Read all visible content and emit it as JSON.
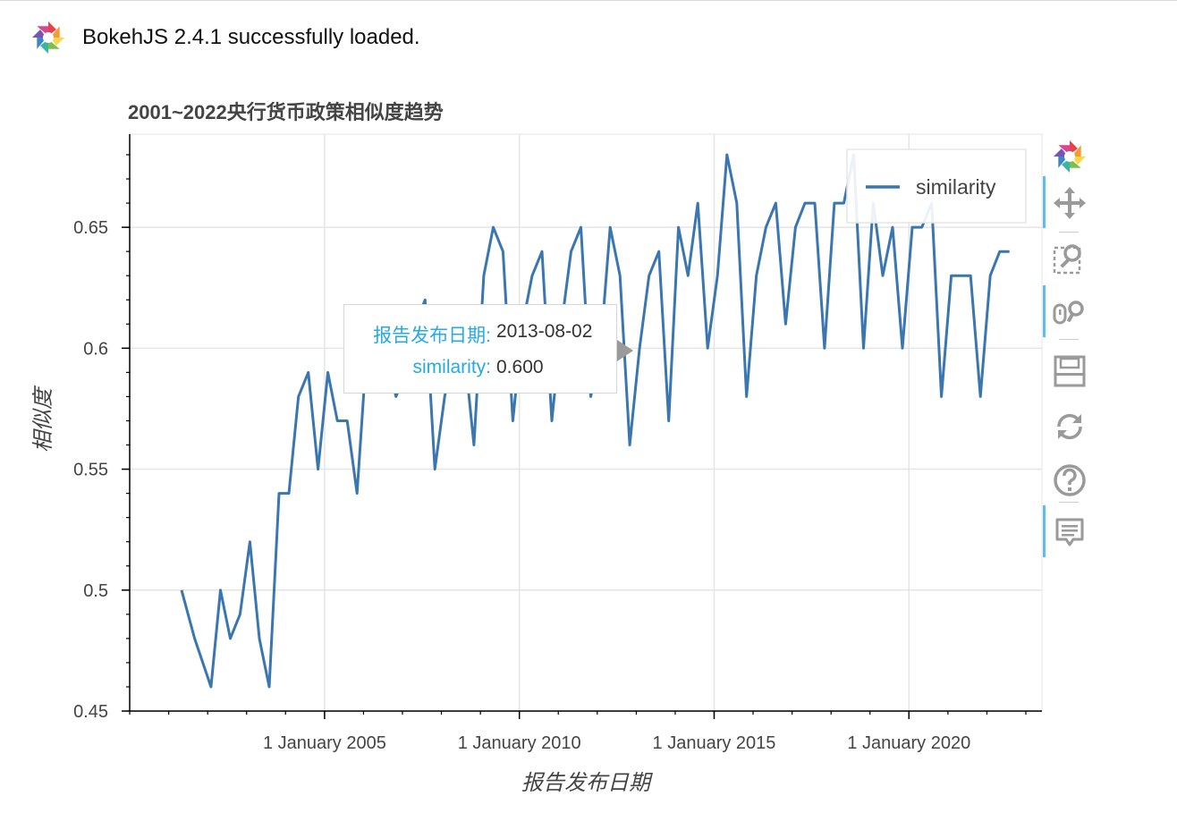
{
  "banner": {
    "logo_icon": "bokeh-logo-icon",
    "text": "BokehJS 2.4.1 successfully loaded."
  },
  "chart_data": {
    "type": "line",
    "title": "2001~2022央行货币政策相似度趋势",
    "xlabel": "报告发布日期",
    "ylabel": "相似度",
    "x_is_date": true,
    "xlim": [
      "2000-01-01",
      "2023-06-01"
    ],
    "ylim": [
      0.45,
      0.6885
    ],
    "x_ticks": [
      "2005-01-01",
      "2010-01-01",
      "2015-01-01",
      "2020-01-01"
    ],
    "x_tick_labels": [
      "1 January 2005",
      "1 January 2010",
      "1 January 2015",
      "1 January 2020"
    ],
    "y_ticks": [
      0.45,
      0.5,
      0.55,
      0.6,
      0.65
    ],
    "y_tick_labels": [
      "0.45",
      "0.5",
      "0.55",
      "0.6",
      "0.65"
    ],
    "grid": true,
    "legend_position": "top-right",
    "series": [
      {
        "name": "similarity",
        "color": "#3a76af",
        "x": [
          "2001-05-01",
          "2001-09-01",
          "2002-02-01",
          "2002-05-01",
          "2002-08-01",
          "2002-11-01",
          "2003-02-01",
          "2003-05-01",
          "2003-08-01",
          "2003-11-01",
          "2004-02-01",
          "2004-05-01",
          "2004-08-01",
          "2004-11-01",
          "2005-02-01",
          "2005-05-01",
          "2005-08-01",
          "2005-11-01",
          "2006-02-01",
          "2006-05-01",
          "2006-08-01",
          "2006-11-01",
          "2007-02-01",
          "2007-05-01",
          "2007-08-01",
          "2007-11-01",
          "2008-02-01",
          "2008-05-01",
          "2008-08-01",
          "2008-11-01",
          "2009-02-01",
          "2009-05-01",
          "2009-08-01",
          "2009-11-01",
          "2010-02-01",
          "2010-05-01",
          "2010-08-01",
          "2010-11-01",
          "2011-02-01",
          "2011-05-01",
          "2011-08-01",
          "2011-11-01",
          "2012-02-01",
          "2012-05-01",
          "2012-08-01",
          "2012-11-01",
          "2013-02-01",
          "2013-05-01",
          "2013-08-01",
          "2013-11-01",
          "2014-02-01",
          "2014-05-01",
          "2014-08-01",
          "2014-11-01",
          "2015-02-01",
          "2015-05-01",
          "2015-08-01",
          "2015-11-01",
          "2016-02-01",
          "2016-05-01",
          "2016-08-01",
          "2016-11-01",
          "2017-02-01",
          "2017-05-01",
          "2017-08-01",
          "2017-11-01",
          "2018-02-01",
          "2018-05-01",
          "2018-08-01",
          "2018-11-01",
          "2019-02-01",
          "2019-05-01",
          "2019-08-01",
          "2019-11-01",
          "2020-02-01",
          "2020-05-01",
          "2020-08-01",
          "2020-11-01",
          "2021-02-01",
          "2021-05-01",
          "2021-08-01",
          "2021-11-01",
          "2022-02-01",
          "2022-05-01",
          "2022-08-01"
        ],
        "y": [
          0.5,
          0.48,
          0.46,
          0.5,
          0.48,
          0.49,
          0.52,
          0.48,
          0.46,
          0.54,
          0.54,
          0.58,
          0.59,
          0.55,
          0.59,
          0.57,
          0.57,
          0.54,
          0.6,
          0.61,
          0.6,
          0.58,
          0.59,
          0.61,
          0.62,
          0.55,
          0.58,
          0.6,
          0.6,
          0.56,
          0.63,
          0.65,
          0.64,
          0.57,
          0.61,
          0.63,
          0.64,
          0.57,
          0.61,
          0.64,
          0.65,
          0.58,
          0.6,
          0.65,
          0.63,
          0.56,
          0.6,
          0.63,
          0.64,
          0.57,
          0.65,
          0.63,
          0.66,
          0.6,
          0.63,
          0.68,
          0.66,
          0.58,
          0.63,
          0.65,
          0.66,
          0.61,
          0.65,
          0.66,
          0.66,
          0.6,
          0.66,
          0.66,
          0.68,
          0.6,
          0.66,
          0.63,
          0.65,
          0.6,
          0.65,
          0.65,
          0.66,
          0.58,
          0.63,
          0.63,
          0.63,
          0.58,
          0.63,
          0.64,
          0.64
        ]
      }
    ]
  },
  "tooltip": {
    "rows": [
      {
        "label": "报告发布日期:",
        "value": "2013-08-02"
      },
      {
        "label": "similarity:",
        "value": "0.600"
      }
    ]
  },
  "toolbar": {
    "tools": [
      {
        "icon": "bokeh-logo-icon",
        "active": false
      },
      {
        "icon": "pan-icon",
        "active": true
      },
      {
        "icon": "box-zoom-icon",
        "active": false
      },
      {
        "icon": "wheel-zoom-icon",
        "active": true
      },
      {
        "icon": "save-icon",
        "active": false
      },
      {
        "icon": "reset-icon",
        "active": false
      },
      {
        "icon": "help-icon",
        "active": false
      },
      {
        "icon": "hover-icon",
        "active": true
      }
    ]
  }
}
